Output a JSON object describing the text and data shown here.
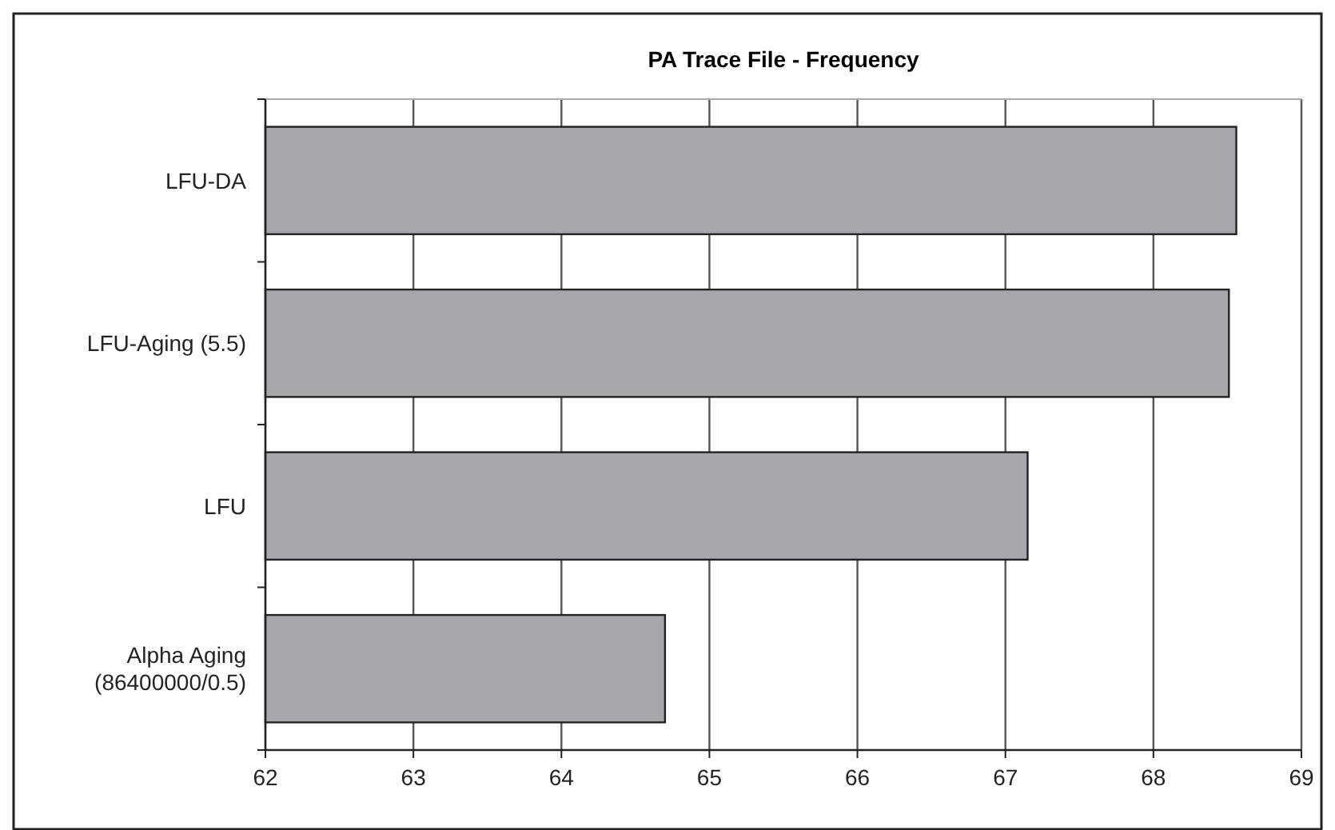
{
  "chart_data": {
    "type": "bar",
    "orientation": "horizontal",
    "title": "PA Trace File - Frequency",
    "categories": [
      "LFU-DA",
      "LFU-Aging (5.5)",
      "LFU",
      "Alpha Aging (86400000/0.5)"
    ],
    "values": [
      68.56,
      68.51,
      67.15,
      64.7
    ],
    "color": "#a6a7ab",
    "xlim": [
      62,
      69
    ],
    "xticks": [
      62,
      63,
      64,
      65,
      66,
      67,
      68,
      69
    ],
    "grid": "x"
  }
}
